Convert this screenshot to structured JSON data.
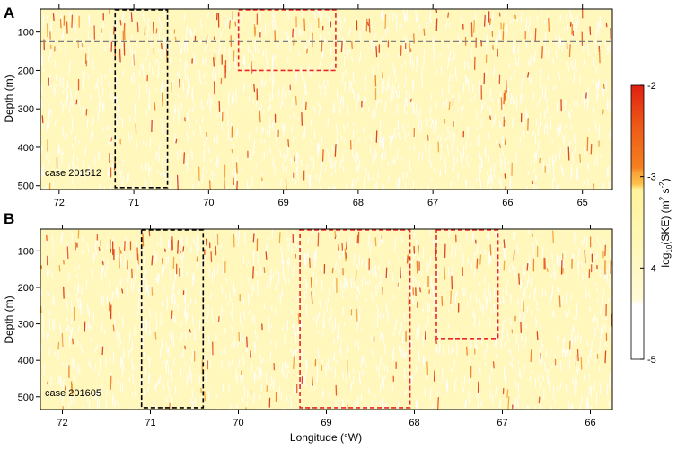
{
  "chart_data": [
    {
      "type": "heatmap",
      "panel_label": "A",
      "case_label": "case 201512",
      "xlabel": "",
      "ylabel": "Depth (m)",
      "xlim": [
        72.25,
        64.6
      ],
      "ylim": [
        510,
        40
      ],
      "xticks": [
        72,
        71,
        70,
        69,
        68,
        67,
        66,
        65
      ],
      "yticks": [
        100,
        200,
        300,
        400,
        500
      ],
      "dashed_line_depth": 125,
      "boxes": [
        {
          "color": "#000000",
          "x": [
            71.25,
            70.55
          ],
          "y": [
            40,
            505
          ]
        },
        {
          "color": "#e8262b",
          "x": [
            69.6,
            68.3
          ],
          "y": [
            40,
            200
          ]
        }
      ]
    },
    {
      "type": "heatmap",
      "panel_label": "B",
      "case_label": "case 201605",
      "xlabel": "Longitude (°W)",
      "ylabel": "Depth (m)",
      "xlim": [
        72.25,
        65.75
      ],
      "ylim": [
        535,
        40
      ],
      "xticks": [
        72,
        71,
        70,
        69,
        68,
        67,
        66
      ],
      "yticks": [
        100,
        200,
        300,
        400,
        500
      ],
      "boxes": [
        {
          "color": "#000000",
          "x": [
            71.1,
            70.4
          ],
          "y": [
            40,
            530
          ]
        },
        {
          "color": "#e8262b",
          "x": [
            69.3,
            68.05
          ],
          "y": [
            40,
            530
          ]
        },
        {
          "color": "#e8262b",
          "x": [
            67.75,
            67.05
          ],
          "y": [
            40,
            340
          ]
        }
      ]
    }
  ],
  "colorbar": {
    "label": "log10(SKE) (m² s⁻²)",
    "label_main": "log",
    "label_sub": "10",
    "label_rest": "(SKE) (m",
    "label_sup1": "2",
    "label_mid": " s",
    "label_sup2": "-2",
    "label_end": ")",
    "ticks": [
      "-2",
      "-3",
      "-4",
      "-5"
    ],
    "range": [
      -5,
      -2
    ],
    "colors": [
      "#ffffff",
      "#fff7bc",
      "#fec44f",
      "#f07020",
      "#d7301f"
    ]
  }
}
